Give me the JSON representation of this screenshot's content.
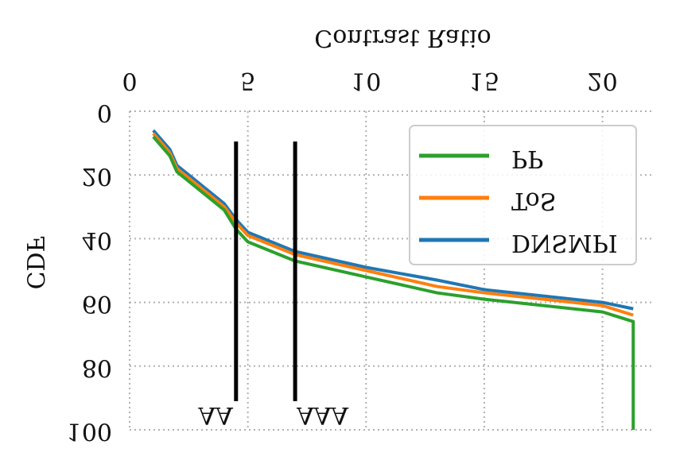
{
  "chart_data": {
    "type": "line",
    "title": "Contrast Ratio",
    "ylabel": "CDF",
    "x": [
      1,
      1.7,
      2,
      3,
      4,
      4.5,
      5,
      7,
      10,
      13,
      15,
      20,
      21.3,
      21.3
    ],
    "series": [
      {
        "name": "PP",
        "color": "#2ca02c",
        "values": [
          8,
          14,
          19,
          25,
          31,
          37,
          41,
          47,
          52,
          57,
          59,
          63,
          66,
          100
        ]
      },
      {
        "name": "ToS",
        "color": "#ff7f0e",
        "values": [
          7,
          13,
          18,
          24,
          30,
          35,
          39,
          45,
          50,
          55,
          57,
          61,
          64,
          null
        ]
      },
      {
        "name": "DNSMPI",
        "color": "#1f77b4",
        "values": [
          6,
          12,
          17,
          23,
          29,
          34,
          38,
          44,
          49,
          53,
          56,
          60,
          62,
          null
        ]
      }
    ],
    "xlim": [
      0,
      22.1
    ],
    "xticks": [
      0,
      5,
      10,
      15,
      20
    ],
    "ylim": [
      0,
      100
    ],
    "yticks": [
      0,
      20,
      40,
      60,
      80,
      100
    ],
    "y_inverted": true,
    "text_flipped": true,
    "grid": true,
    "legend": "upper right",
    "annotations": [
      {
        "text": "AA",
        "x": 4.5,
        "color": "#000000"
      },
      {
        "text": "AAA",
        "x": 7,
        "color": "#000000"
      }
    ]
  }
}
